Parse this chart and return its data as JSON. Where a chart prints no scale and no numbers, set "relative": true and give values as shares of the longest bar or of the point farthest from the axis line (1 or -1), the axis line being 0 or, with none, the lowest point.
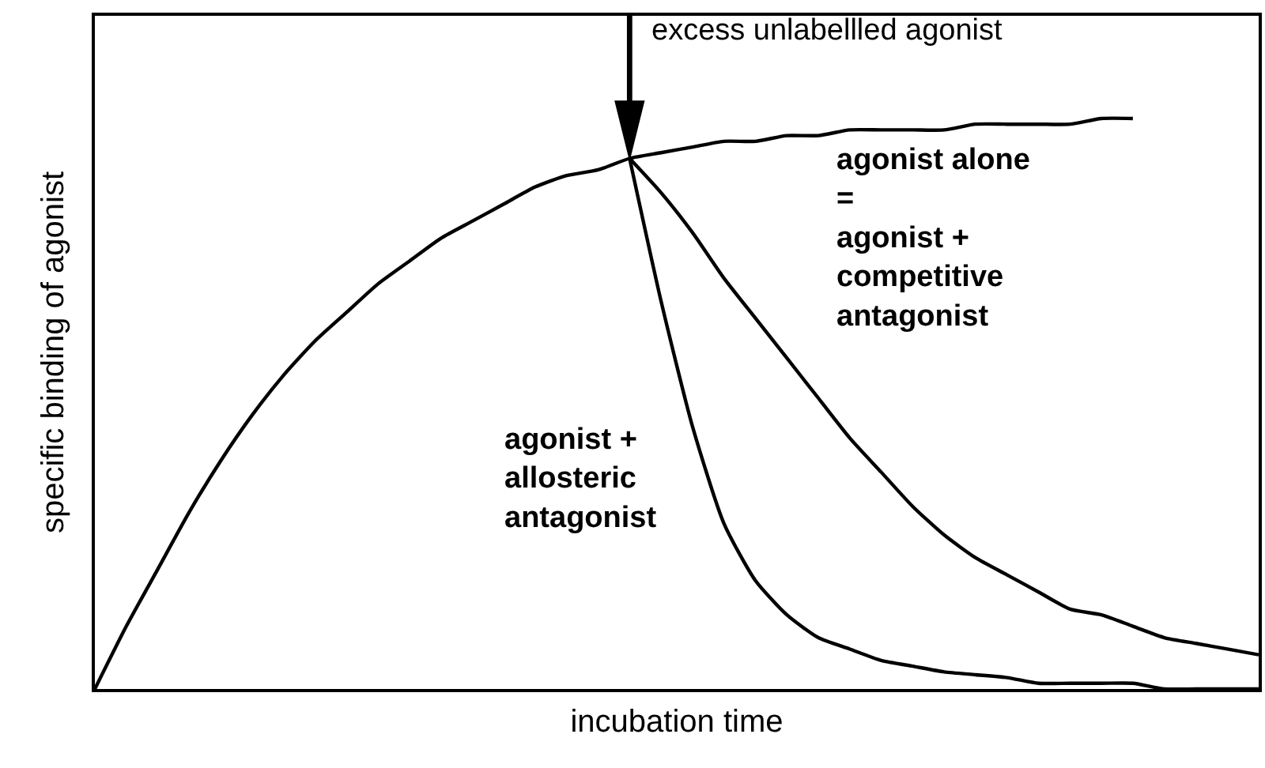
{
  "chart_data": {
    "type": "line",
    "relative": true,
    "xlabel": "incubation time",
    "ylabel": "specific binding of agonist",
    "categories": [
      null,
      null,
      null,
      null,
      null,
      null,
      null,
      null,
      null,
      null,
      null,
      null,
      null,
      null,
      null,
      null,
      null,
      null,
      null,
      null,
      null,
      null,
      null,
      null,
      null,
      null,
      null,
      null,
      null,
      null,
      null,
      null,
      null,
      null,
      null,
      null,
      null,
      null
    ],
    "series": [
      {
        "color": "#000000",
        "values": [
          0,
          0.11,
          0.21,
          0.31,
          0.4,
          0.48,
          0.55,
          0.61,
          0.66,
          0.71,
          0.75,
          0.79,
          0.82,
          0.85,
          0.88,
          0.9,
          0.91,
          0.93,
          0.94,
          0.95,
          0.96,
          0.96,
          0.97,
          0.97,
          0.98,
          0.98,
          0.98,
          0.98,
          0.99,
          0.99,
          0.99,
          0.99,
          1.0,
          1.0,
          null,
          null,
          null,
          null
        ]
      },
      {
        "name": "agonist +\nallosteric\nantagonist",
        "color": "#000000",
        "values": [
          null,
          null,
          null,
          null,
          null,
          null,
          null,
          null,
          null,
          null,
          null,
          null,
          null,
          null,
          null,
          null,
          null,
          0.93,
          0.68,
          0.46,
          0.29,
          0.19,
          0.13,
          0.09,
          0.07,
          0.05,
          0.04,
          0.03,
          0.025,
          0.02,
          0.01,
          0.01,
          0.01,
          0.01,
          0,
          0,
          0,
          0
        ]
      },
      {
        "name": "agonist alone\n=\nagonist +\ncompetitive\nantagonist",
        "color": "#000000",
        "values": [
          null,
          null,
          null,
          null,
          null,
          null,
          null,
          null,
          null,
          null,
          null,
          null,
          null,
          null,
          null,
          null,
          null,
          0.93,
          0.87,
          0.8,
          0.72,
          0.65,
          0.58,
          0.51,
          0.44,
          0.38,
          0.32,
          0.27,
          0.23,
          0.2,
          0.17,
          0.14,
          0.13,
          0.11,
          0.09,
          0.08,
          0.07,
          0.06
        ]
      }
    ],
    "annotations": [
      "excess unlabellled agonist"
    ],
    "legend": false,
    "tick_labels": false,
    "marker": "none",
    "line_style": "solid"
  }
}
